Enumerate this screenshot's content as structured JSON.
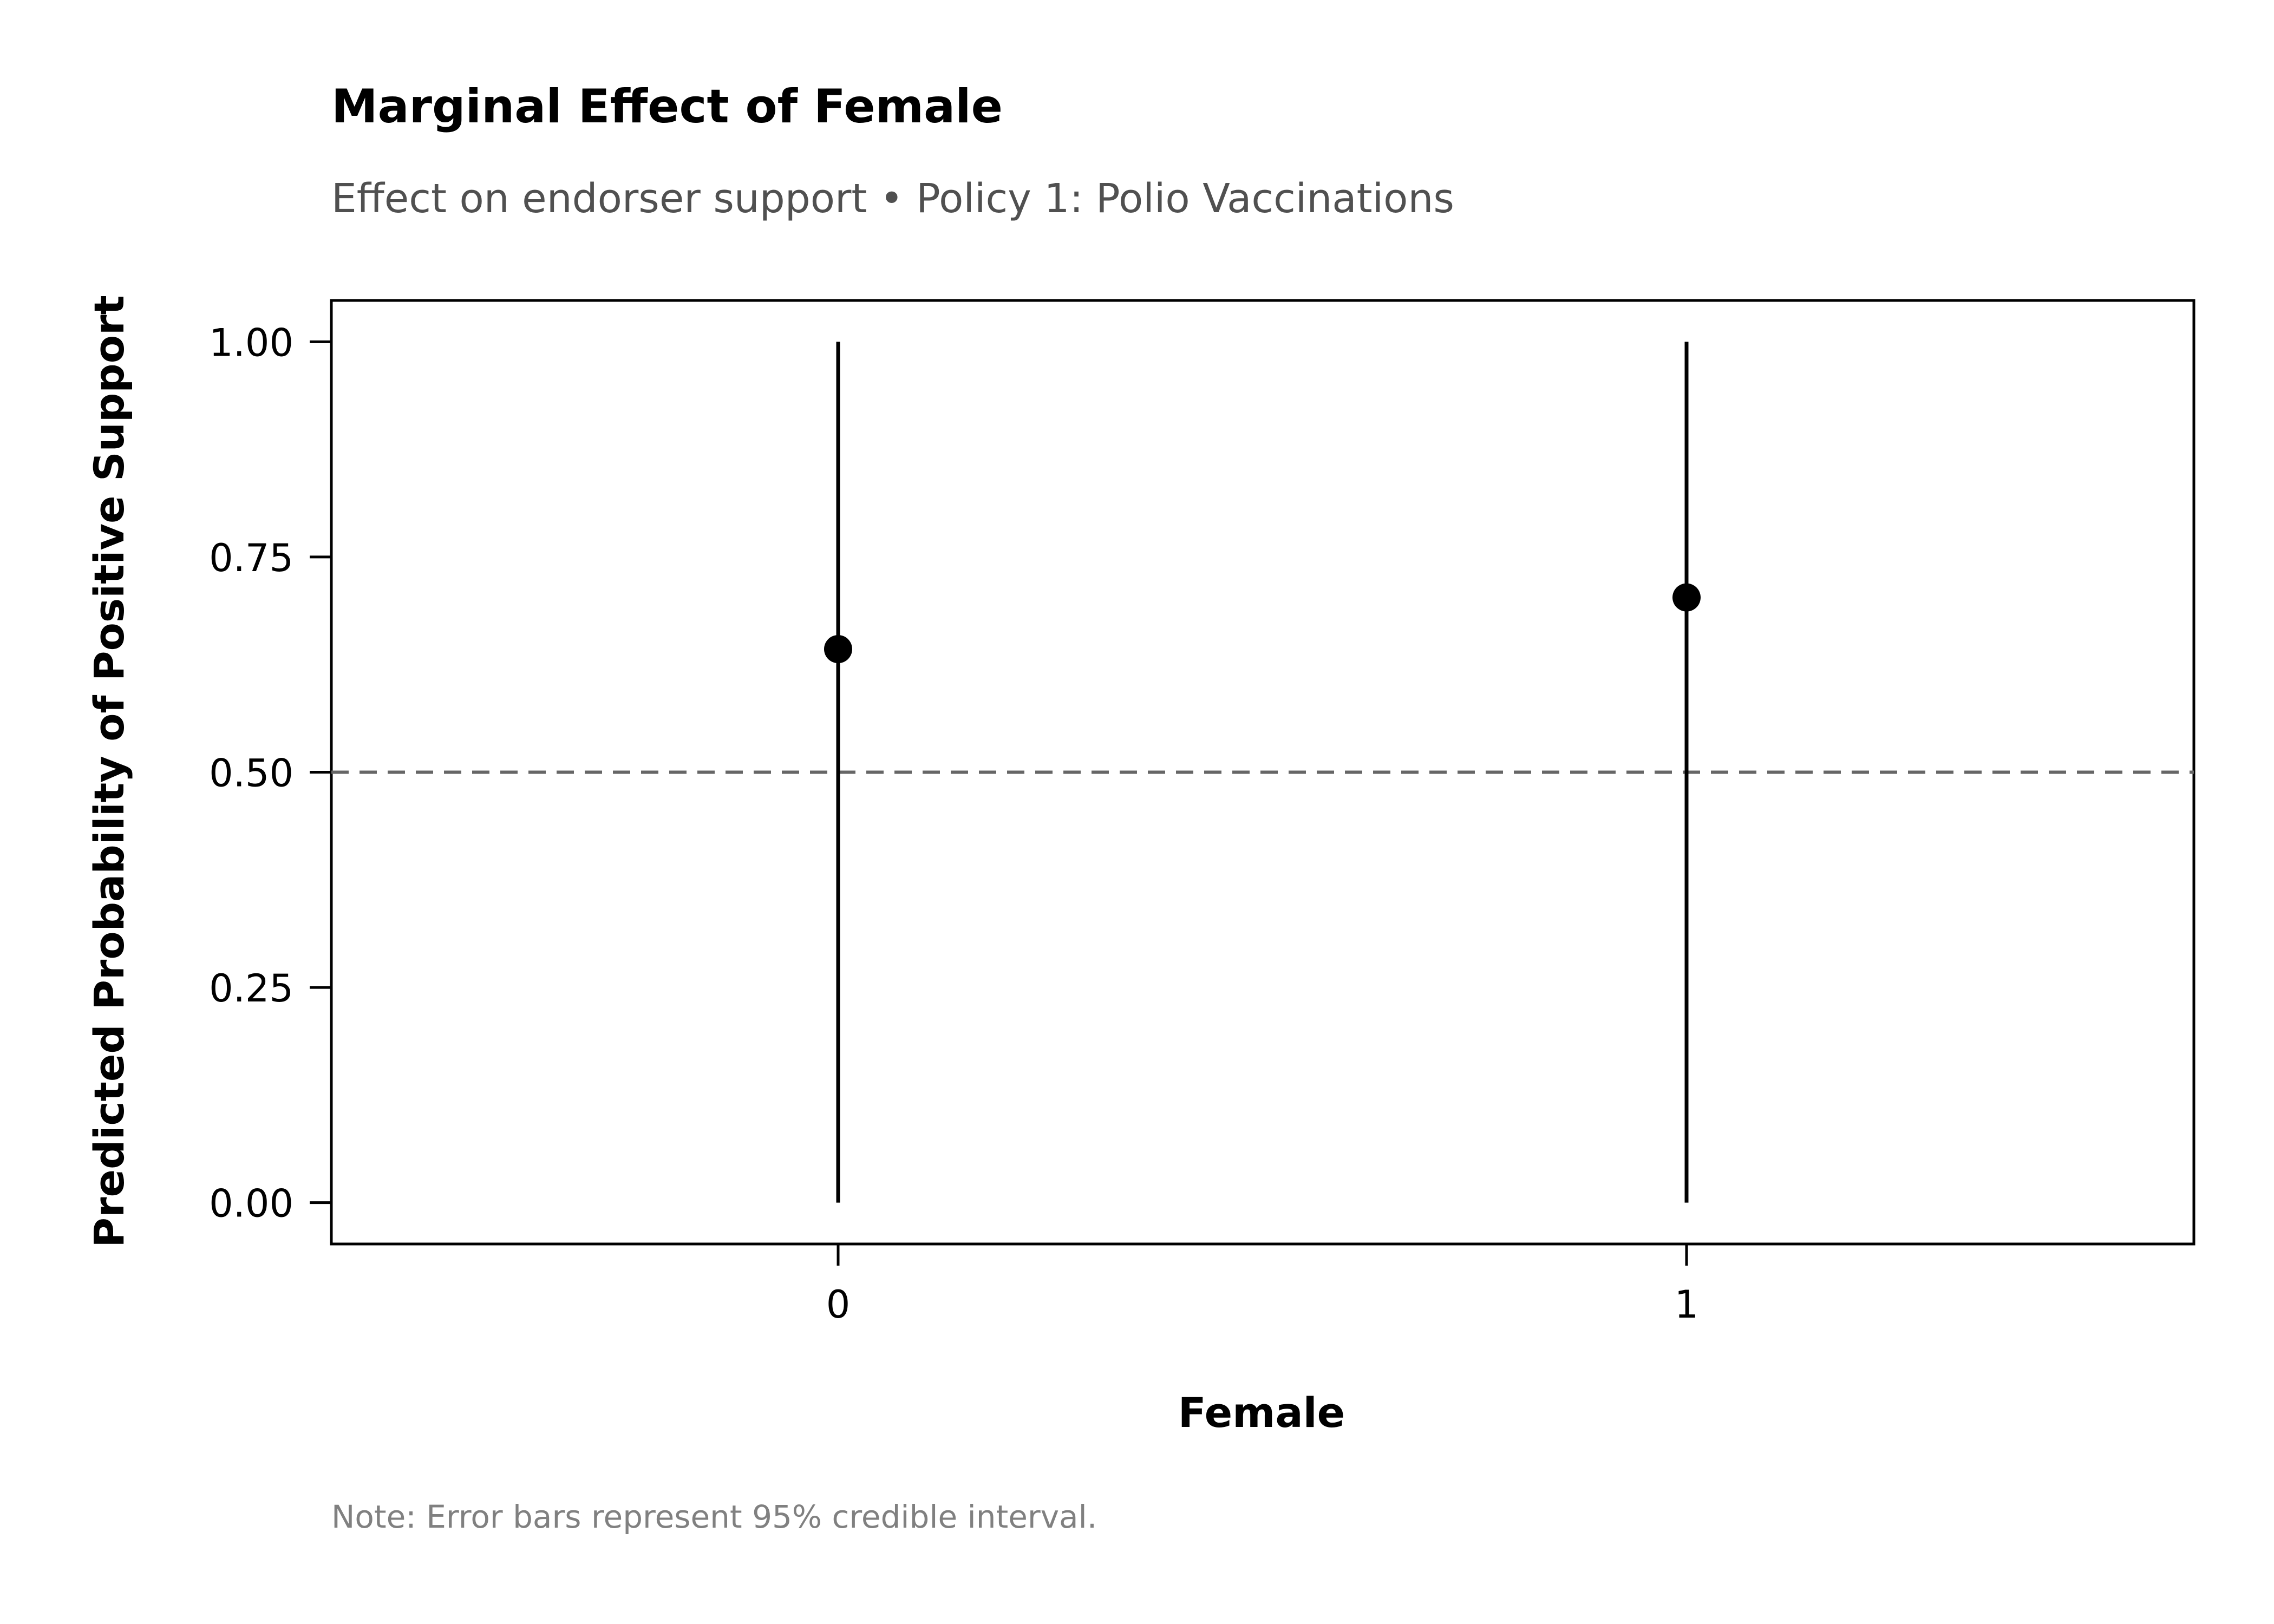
{
  "chart_data": {
    "type": "scatter",
    "title": "Marginal Effect of Female",
    "subtitle": "Effect on endorser support • Policy 1: Polio Vaccinations",
    "xlabel": "Female",
    "ylabel": "Predicted Probability of Positive Support",
    "note": "Note: Error bars represent 95% credible interval.",
    "categories": [
      "0",
      "1"
    ],
    "points": [
      {
        "x": "0",
        "y": 0.643,
        "lower": 0.0,
        "upper": 1.0
      },
      {
        "x": "1",
        "y": 0.703,
        "lower": 0.0,
        "upper": 1.0
      }
    ],
    "yticks": [
      "0.00",
      "0.25",
      "0.50",
      "0.75",
      "1.00"
    ],
    "ylim": [
      -0.048,
      1.048
    ],
    "reference_line": {
      "y": 0.5,
      "style": "dashed",
      "color": "#666666"
    },
    "grid": false,
    "legend": "none",
    "colors": {
      "points": "#000000",
      "errorbars": "#000000",
      "frame": "#000000"
    }
  }
}
